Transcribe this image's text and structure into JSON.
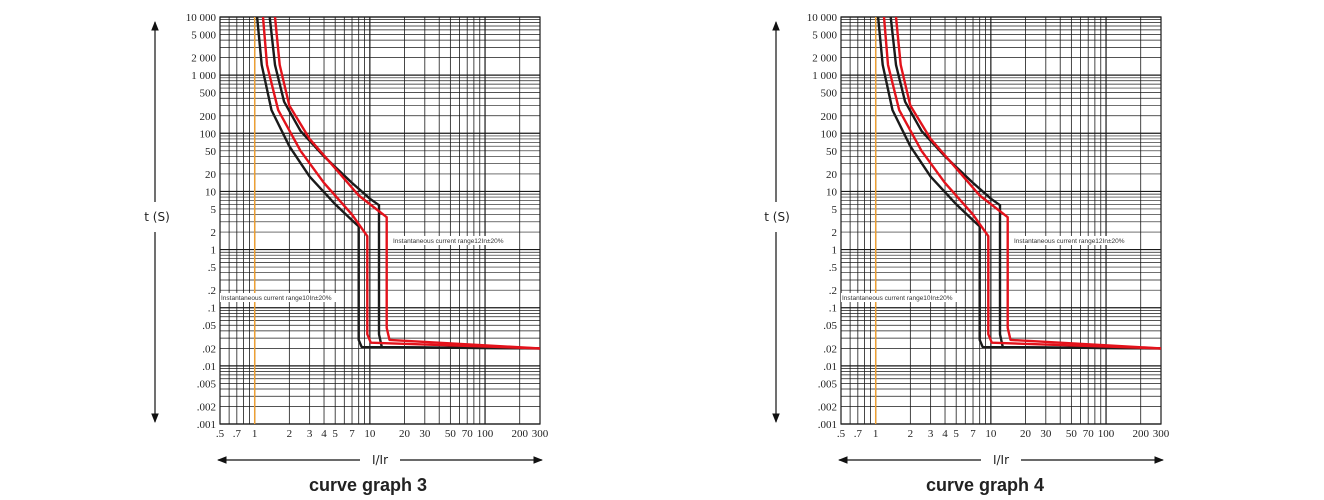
{
  "chart_data": [
    {
      "type": "line",
      "title": "curve graph 3",
      "xlabel": "I/Ir",
      "ylabel": "t (S)",
      "x_scale": "log",
      "y_scale": "log",
      "xlim": [
        0.5,
        300
      ],
      "ylim": [
        0.001,
        10000
      ],
      "grid": true,
      "x_ticks": [
        ".5",
        ".7",
        "1",
        "2",
        "3",
        "4",
        "5",
        "7",
        "10",
        "20",
        "30",
        "50",
        "70",
        "100",
        "200",
        "300"
      ],
      "y_ticks": [
        "10 000",
        "5 000",
        "2 000",
        "1 000",
        "500",
        "200",
        "100",
        "50",
        "20",
        "10",
        "5",
        "2",
        "1",
        ".5",
        ".2",
        ".1",
        ".05",
        ".02",
        ".01",
        ".005",
        ".002",
        ".001"
      ],
      "reference_line_x": 1,
      "annotations": [
        "Instantaneous current range12In±20%",
        "Instantaneous current range10In±20%"
      ],
      "series": [
        {
          "color": "#1a1a1a",
          "points": [
            [
              1.05,
              10000
            ],
            [
              1.15,
              1500
            ],
            [
              1.4,
              250
            ],
            [
              2,
              60
            ],
            [
              3,
              18
            ],
            [
              5,
              6
            ],
            [
              7,
              3.2
            ],
            [
              8,
              2.5
            ],
            [
              8,
              0.028
            ],
            [
              8.5,
              0.021
            ],
            [
              300,
              0.02
            ]
          ]
        },
        {
          "color": "#1a1a1a",
          "points": [
            [
              1.35,
              10000
            ],
            [
              1.5,
              1500
            ],
            [
              1.8,
              350
            ],
            [
              2.5,
              110
            ],
            [
              4,
              40
            ],
            [
              7,
              14
            ],
            [
              10,
              7.5
            ],
            [
              12,
              5.8
            ],
            [
              12,
              0.035
            ],
            [
              12.7,
              0.021
            ],
            [
              300,
              0.02
            ]
          ]
        },
        {
          "color": "#e3121b",
          "points": [
            [
              1.18,
              10000
            ],
            [
              1.28,
              1500
            ],
            [
              1.6,
              250
            ],
            [
              2.5,
              50
            ],
            [
              4,
              14
            ],
            [
              7,
              4
            ],
            [
              9.5,
              1.7
            ],
            [
              9.5,
              0.035
            ],
            [
              10.2,
              0.025
            ],
            [
              300,
              0.02
            ]
          ]
        },
        {
          "color": "#e3121b",
          "points": [
            [
              1.5,
              10000
            ],
            [
              1.65,
              1500
            ],
            [
              2,
              300
            ],
            [
              3,
              80
            ],
            [
              5,
              25
            ],
            [
              8,
              8.5
            ],
            [
              14,
              3.6
            ],
            [
              14,
              0.045
            ],
            [
              14.8,
              0.028
            ],
            [
              300,
              0.02
            ]
          ]
        }
      ]
    },
    {
      "type": "line",
      "title": "curve graph 4",
      "xlabel": "I/Ir",
      "ylabel": "t (S)",
      "x_scale": "log",
      "y_scale": "log",
      "xlim": [
        0.5,
        300
      ],
      "ylim": [
        0.001,
        10000
      ],
      "grid": true,
      "x_ticks": [
        ".5",
        ".7",
        "1",
        "2",
        "3",
        "4",
        "5",
        "7",
        "10",
        "20",
        "30",
        "50",
        "70",
        "100",
        "200",
        "300"
      ],
      "y_ticks": [
        "10 000",
        "5 000",
        "2 000",
        "1 000",
        "500",
        "200",
        "100",
        "50",
        "20",
        "10",
        "5",
        "2",
        "1",
        ".5",
        ".2",
        ".1",
        ".05",
        ".02",
        ".01",
        ".005",
        ".002",
        ".001"
      ],
      "reference_line_x": 1,
      "annotations": [
        "Instantaneous current range12In±20%",
        "Instantaneous current range10In±20%"
      ],
      "series": [
        {
          "color": "#1a1a1a",
          "points": [
            [
              1.05,
              10000
            ],
            [
              1.15,
              1500
            ],
            [
              1.4,
              250
            ],
            [
              2,
              60
            ],
            [
              3,
              18
            ],
            [
              5,
              6
            ],
            [
              7,
              3.2
            ],
            [
              8,
              2.5
            ],
            [
              8,
              0.028
            ],
            [
              8.5,
              0.021
            ],
            [
              300,
              0.02
            ]
          ]
        },
        {
          "color": "#1a1a1a",
          "points": [
            [
              1.35,
              10000
            ],
            [
              1.5,
              1500
            ],
            [
              1.8,
              350
            ],
            [
              2.5,
              110
            ],
            [
              4,
              40
            ],
            [
              7,
              14
            ],
            [
              10,
              7.5
            ],
            [
              12,
              5.8
            ],
            [
              12,
              0.035
            ],
            [
              12.7,
              0.021
            ],
            [
              300,
              0.02
            ]
          ]
        },
        {
          "color": "#e3121b",
          "points": [
            [
              1.18,
              10000
            ],
            [
              1.28,
              1500
            ],
            [
              1.6,
              250
            ],
            [
              2.5,
              50
            ],
            [
              4,
              14
            ],
            [
              7,
              4
            ],
            [
              9.5,
              1.7
            ],
            [
              9.5,
              0.035
            ],
            [
              10.2,
              0.025
            ],
            [
              300,
              0.02
            ]
          ]
        },
        {
          "color": "#e3121b",
          "points": [
            [
              1.5,
              10000
            ],
            [
              1.65,
              1500
            ],
            [
              2,
              300
            ],
            [
              3,
              80
            ],
            [
              5,
              25
            ],
            [
              8,
              8.5
            ],
            [
              14,
              3.6
            ],
            [
              14,
              0.045
            ],
            [
              14.8,
              0.028
            ],
            [
              300,
              0.02
            ]
          ]
        }
      ]
    }
  ],
  "colors": {
    "grid": "#1a1a1a",
    "reference": "#f0a030",
    "axis": "#111111"
  }
}
